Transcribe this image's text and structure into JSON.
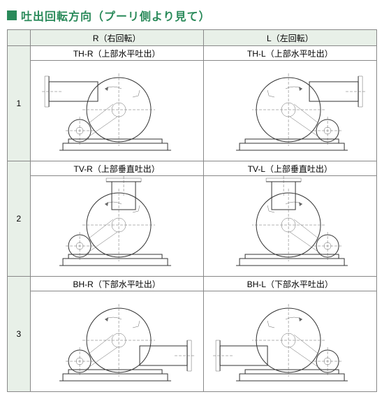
{
  "title": "吐出回転方向（プーリ側より見て）",
  "columns": [
    {
      "key": "R",
      "label": "R（右回転）"
    },
    {
      "key": "L",
      "label": "L（左回転）"
    }
  ],
  "rows": [
    {
      "num": "1",
      "cells": [
        {
          "label": "TH-R（上部水平吐出）",
          "mirror": false,
          "type": "TH"
        },
        {
          "label": "TH-L（上部水平吐出）",
          "mirror": true,
          "type": "TH"
        }
      ]
    },
    {
      "num": "2",
      "cells": [
        {
          "label": "TV-R（上部垂直吐出）",
          "mirror": false,
          "type": "TV"
        },
        {
          "label": "TV-L（上部垂直吐出）",
          "mirror": true,
          "type": "TV"
        }
      ]
    },
    {
      "num": "3",
      "cells": [
        {
          "label": "BH-R（下部水平吐出）",
          "mirror": false,
          "type": "BH"
        },
        {
          "label": "BH-L（下部水平吐出）",
          "mirror": true,
          "type": "BH"
        }
      ]
    }
  ],
  "colors": {
    "accent": "#2a8a5a",
    "bg": "#e8f0e8",
    "line": "#333"
  }
}
